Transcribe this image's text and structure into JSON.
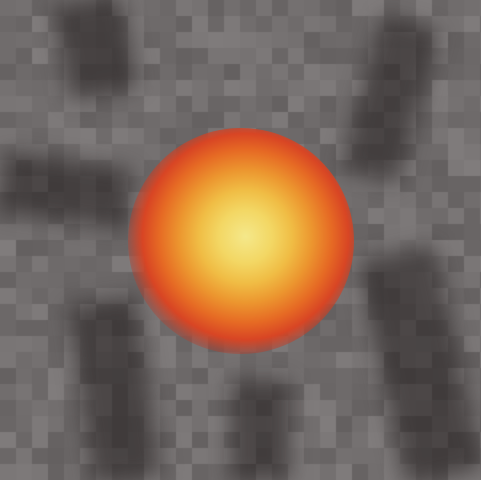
{
  "image": {
    "description_colors": {
      "background": "#6e6a6a",
      "dark_streak": "#2a2424",
      "core": "#f4e88a",
      "inner_ring": "#f0bd45",
      "outer_ring": "#e66a24",
      "edge": "#d84524"
    }
  }
}
